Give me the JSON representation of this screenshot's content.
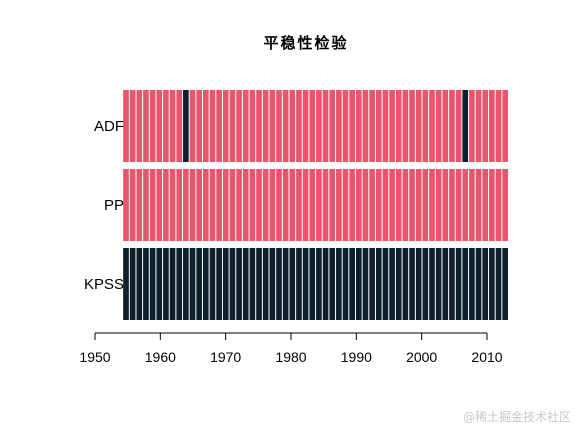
{
  "chart_data": {
    "type": "heatmap",
    "title": "平稳性检验",
    "rows": [
      "ADF",
      "PP",
      "KPSS"
    ],
    "x_ticks": [
      1950,
      1960,
      1970,
      1980,
      1990,
      2000,
      2010
    ],
    "x_range": [
      1950,
      2014
    ],
    "years": [
      1955,
      1956,
      1957,
      1958,
      1959,
      1960,
      1961,
      1962,
      1963,
      1964,
      1965,
      1966,
      1967,
      1968,
      1969,
      1970,
      1971,
      1972,
      1973,
      1974,
      1975,
      1976,
      1977,
      1978,
      1979,
      1980,
      1981,
      1982,
      1983,
      1984,
      1985,
      1986,
      1987,
      1988,
      1989,
      1990,
      1991,
      1992,
      1993,
      1994,
      1995,
      1996,
      1997,
      1998,
      1999,
      2000,
      2001,
      2002,
      2003,
      2004,
      2005,
      2006,
      2007,
      2008,
      2009,
      2010,
      2011,
      2012
    ],
    "series": [
      {
        "name": "ADF",
        "dark_years": [
          1964,
          2006
        ]
      },
      {
        "name": "PP",
        "dark_years": []
      },
      {
        "name": "KPSS",
        "dark_years": "all"
      }
    ],
    "colors": {
      "light": "#e8566e",
      "dark": "#0f1f2c"
    }
  },
  "watermark": "@稀土掘金技术社区"
}
